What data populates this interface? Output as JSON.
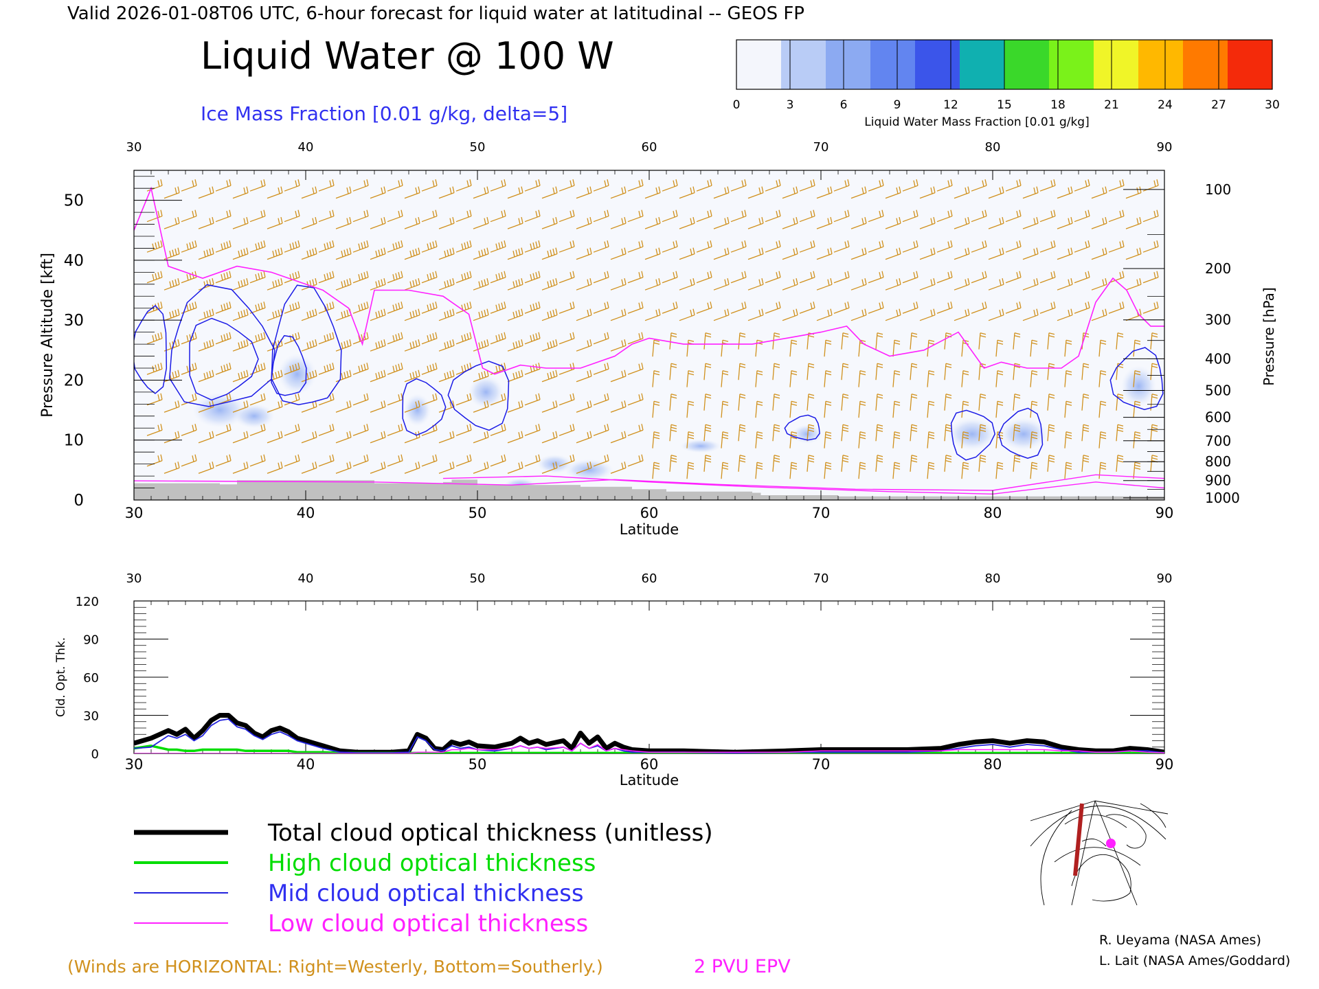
{
  "header": {
    "valid_line": "Valid 2026-01-08T06 UTC, 6-hour forecast for liquid water at latitudinal -- GEOS FP",
    "title": "Liquid Water @ 100 W",
    "subtitle": "Ice Mass Fraction [0.01 g/kg, delta=5]"
  },
  "colorbar": {
    "label": "Liquid Water Mass Fraction [0.01 g/kg]",
    "ticks": [
      "0",
      "3",
      "6",
      "9",
      "12",
      "15",
      "18",
      "21",
      "24",
      "27",
      "30"
    ],
    "colors": [
      "#f4f6fc",
      "#b9ccf6",
      "#8caaf2",
      "#6285f0",
      "#3b55ea",
      "#10b0b0",
      "#3ad82a",
      "#7af21a",
      "#f0f528",
      "#ffb800",
      "#ff7a00",
      "#f42a0a"
    ]
  },
  "colors": {
    "ice_contour": "#1a1ae6",
    "epv_contour": "#ff20ff",
    "wind_barb": "#d0901c",
    "terrain": "#c0c0c0",
    "total_line": "#000000",
    "high_line": "#00dd00",
    "mid_line": "#2222dd",
    "low_line": "#ff20ff"
  },
  "main_panel": {
    "left_axis_label": "Pressure Altitude [kft]",
    "right_axis_label": "Pressure [hPa]",
    "x_label": "Latitude",
    "x_ticks": [
      "30",
      "40",
      "50",
      "60",
      "70",
      "80",
      "90"
    ],
    "y_ticks": [
      "0",
      "10",
      "20",
      "30",
      "40",
      "50"
    ],
    "pressure_ticks": [
      "100",
      "200",
      "300",
      "400",
      "500",
      "600",
      "700",
      "800",
      "900",
      "1000"
    ]
  },
  "bottom_panel": {
    "y_label": "Cld. Opt. Thk.",
    "x_label": "Latitude",
    "x_ticks": [
      "30",
      "40",
      "50",
      "60",
      "70",
      "80",
      "90"
    ],
    "y_ticks": [
      "0",
      "30",
      "60",
      "90",
      "120"
    ]
  },
  "legend": {
    "items": [
      {
        "label": "Total cloud optical thickness (unitless)",
        "color": "#000000"
      },
      {
        "label": "High cloud optical thickness",
        "color": "#00dd00"
      },
      {
        "label": "Mid cloud optical thickness",
        "color": "#2222dd"
      },
      {
        "label": "Low cloud optical thickness",
        "color": "#ff20ff"
      }
    ]
  },
  "footer": {
    "winds_note": "(Winds are HORIZONTAL: Right=Westerly, Bottom=Southerly.)",
    "epv_note": "2 PVU EPV",
    "credit_1": "R. Ueyama (NASA Ames)",
    "credit_2": "L. Lait (NASA Ames/Goddard)"
  },
  "chart_data": [
    {
      "type": "heatmap",
      "title": "Liquid Water @ 100 W",
      "xlabel": "Latitude",
      "ylabel": "Pressure Altitude [kft]",
      "xlim": [
        30,
        90
      ],
      "ylim": [
        0,
        55
      ],
      "grid": false,
      "epv_2pvu_contour": {
        "name": "2 PVU EPV",
        "x": [
          30,
          31,
          32,
          34,
          36,
          38,
          40,
          41,
          42.5,
          43.3,
          44,
          46,
          48,
          49.5,
          50.3,
          51,
          52.5,
          54,
          56,
          58,
          59,
          60,
          62,
          64,
          66,
          68,
          70,
          71.5,
          72.5,
          74,
          76,
          78,
          79.5,
          80.5,
          82,
          84,
          85,
          86,
          87,
          87.8,
          88.5,
          89.2,
          90
        ],
        "y": [
          45,
          52,
          39,
          37,
          39,
          38,
          36,
          35,
          32,
          26,
          35,
          35,
          34,
          31,
          22,
          21,
          22.5,
          22,
          22,
          24,
          26,
          27,
          26,
          26,
          26,
          27,
          28,
          29,
          26,
          24,
          25,
          28,
          22,
          23,
          22,
          22,
          24,
          33,
          37,
          35,
          31,
          29,
          29
        ]
      },
      "ice_contour_regions_5": [
        {
          "lat": [
            30,
            32
          ],
          "alt": [
            18,
            32
          ]
        },
        {
          "lat": [
            32,
            38
          ],
          "alt": [
            15,
            35
          ]
        },
        {
          "lat": [
            38,
            42
          ],
          "alt": [
            15,
            35
          ]
        },
        {
          "lat": [
            45.5,
            48
          ],
          "alt": [
            11,
            20
          ]
        },
        {
          "lat": [
            48.5,
            52
          ],
          "alt": [
            12,
            23
          ]
        },
        {
          "lat": [
            68,
            70
          ],
          "alt": [
            10,
            14
          ]
        },
        {
          "lat": [
            77.5,
            80
          ],
          "alt": [
            7,
            15
          ]
        },
        {
          "lat": [
            80.5,
            83
          ],
          "alt": [
            7,
            15
          ]
        },
        {
          "lat": [
            87,
            90
          ],
          "alt": [
            15,
            25
          ]
        }
      ],
      "ice_contour_regions_10": [
        {
          "lat": [
            33,
            37
          ],
          "alt": [
            17,
            30
          ]
        },
        {
          "lat": [
            38,
            40
          ],
          "alt": [
            17,
            27
          ]
        }
      ]
    },
    {
      "type": "line",
      "xlabel": "Latitude",
      "ylabel": "Cld. Opt. Thk.",
      "xlim": [
        30,
        90
      ],
      "ylim": [
        0,
        120
      ],
      "x": [
        30,
        31,
        32,
        32.5,
        33,
        33.5,
        34,
        34.5,
        35,
        35.5,
        36,
        36.5,
        37,
        37.5,
        38,
        38.5,
        39,
        39.5,
        40,
        40.5,
        41,
        42,
        43,
        44,
        45,
        46,
        46.5,
        47,
        47.5,
        48,
        48.5,
        49,
        49.5,
        50,
        51,
        52,
        52.5,
        53,
        53.5,
        54,
        55,
        55.5,
        56,
        56.5,
        57,
        57.5,
        58,
        58.5,
        59,
        60,
        62,
        65,
        68,
        70,
        72,
        75,
        77,
        78,
        79,
        80,
        81,
        82,
        83,
        84,
        85,
        86,
        87,
        88,
        89,
        90
      ],
      "series": [
        {
          "name": "Total cloud optical thickness (unitless)",
          "values": [
            8,
            12,
            18,
            15,
            19,
            12,
            18,
            26,
            30,
            30,
            24,
            22,
            16,
            13,
            18,
            20,
            17,
            12,
            10,
            8,
            6,
            2,
            1,
            1,
            1,
            2,
            15,
            12,
            4,
            3,
            9,
            7,
            9,
            6,
            5,
            8,
            12,
            8,
            10,
            7,
            10,
            4,
            16,
            8,
            13,
            4,
            8,
            5,
            3,
            2,
            2,
            1,
            2,
            3,
            3,
            3,
            4,
            7,
            9,
            10,
            8,
            10,
            9,
            5,
            3,
            2,
            2,
            4,
            3,
            1
          ]
        },
        {
          "name": "High cloud optical thickness",
          "values": [
            4,
            6,
            3,
            3,
            2,
            2,
            3,
            3,
            3,
            3,
            3,
            2,
            2,
            2,
            2,
            2,
            2,
            1,
            1,
            1,
            1,
            0.5,
            0.3,
            0.3,
            0.3,
            0.3,
            0.3,
            0.3,
            0.3,
            0.3,
            0.3,
            0.3,
            0.3,
            0.3,
            0.3,
            0.3,
            0.3,
            0.3,
            0.3,
            0.3,
            0.3,
            0.3,
            0.3,
            0.3,
            0.3,
            0.3,
            0.3,
            0.3,
            0.3,
            0.3,
            0.3,
            0.3,
            0.3,
            0.3,
            0.3,
            0.3,
            0.3,
            0.3,
            0.3,
            0.3,
            0.3,
            0.3,
            0.3,
            0.3,
            0.3,
            0.3,
            0.3,
            0.3,
            0.3,
            0.3
          ]
        },
        {
          "name": "Mid cloud optical thickness",
          "values": [
            4,
            5,
            14,
            12,
            15,
            10,
            14,
            22,
            26,
            27,
            21,
            19,
            14,
            11,
            15,
            17,
            14,
            10,
            8,
            6,
            4,
            1,
            0.5,
            0.5,
            0.5,
            1,
            13,
            10,
            3,
            2,
            6,
            4,
            5,
            3,
            2,
            4,
            6,
            4,
            5,
            3,
            5,
            2,
            8,
            4,
            6,
            2,
            4,
            2,
            1,
            1,
            1,
            0.5,
            1,
            1,
            1,
            1,
            2,
            4,
            6,
            7,
            5,
            7,
            6,
            3,
            1,
            1,
            1,
            2,
            2,
            0.5
          ]
        },
        {
          "name": "Low cloud optical thickness",
          "values": [
            0,
            0,
            0,
            0,
            0,
            0,
            0,
            0,
            0,
            0,
            0,
            0,
            0,
            0,
            0,
            0,
            0,
            0,
            0,
            0,
            0,
            0,
            0,
            0,
            0,
            0,
            1,
            1,
            1,
            1,
            3,
            3,
            4,
            3,
            3,
            4,
            6,
            4,
            5,
            4,
            5,
            2,
            8,
            4,
            7,
            2,
            4,
            3,
            2,
            1,
            1,
            1,
            1,
            2,
            2,
            2,
            2,
            3,
            3,
            3,
            3,
            3,
            3,
            2,
            2,
            1,
            1,
            2,
            1,
            0.5
          ]
        }
      ]
    }
  ]
}
